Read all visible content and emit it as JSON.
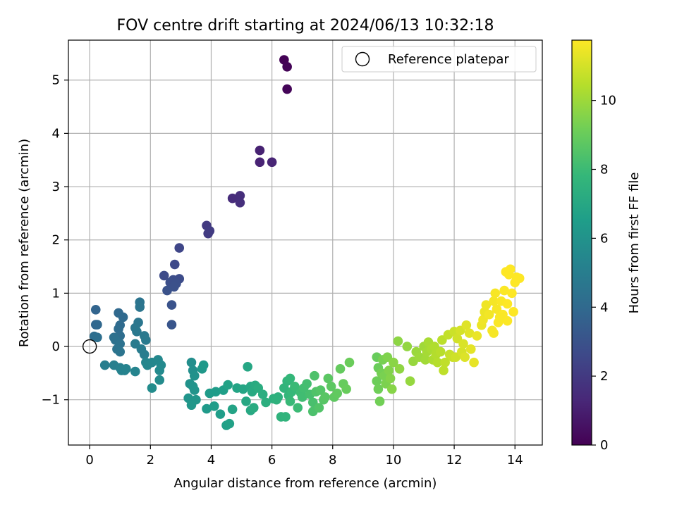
{
  "chart_data": {
    "type": "scatter",
    "title": "FOV centre drift starting at 2024/06/13 10:32:18",
    "xlabel": "Angular distance from reference (arcmin)",
    "ylabel": "Rotation from reference (arcmin)",
    "xlim": [
      -0.7,
      14.9
    ],
    "ylim": [
      -1.85,
      5.75
    ],
    "x_ticks": [
      0,
      2,
      4,
      6,
      8,
      10,
      12,
      14
    ],
    "y_ticks": [
      -1,
      0,
      1,
      2,
      3,
      4,
      5
    ],
    "grid": true,
    "legend": {
      "placement": "top-right",
      "entries": [
        "Reference platepar"
      ]
    },
    "reference_point": {
      "x": 0,
      "y": 0,
      "marker": "hollow-circle"
    },
    "colorbar": {
      "label": "Hours from first FF file",
      "range": [
        0,
        11.75
      ],
      "ticks": [
        0,
        2,
        4,
        6,
        8,
        10
      ],
      "colormap": "viridis"
    },
    "color_stops": [
      "#440154",
      "#482878",
      "#3e4989",
      "#31688e",
      "#26828e",
      "#1f9e89",
      "#35b779",
      "#6ece58",
      "#b5de2b",
      "#fde725"
    ],
    "points": [
      [
        6.4,
        5.38,
        0.05
      ],
      [
        6.5,
        5.25,
        0.1
      ],
      [
        6.5,
        4.83,
        0.15
      ],
      [
        5.6,
        3.68,
        1.1
      ],
      [
        5.6,
        3.46,
        1.15
      ],
      [
        6.0,
        3.46,
        1.2
      ],
      [
        4.7,
        2.78,
        1.5
      ],
      [
        4.95,
        2.83,
        1.55
      ],
      [
        4.95,
        2.7,
        1.6
      ],
      [
        3.85,
        2.27,
        2.0
      ],
      [
        3.9,
        2.12,
        2.05
      ],
      [
        3.95,
        2.17,
        2.1
      ],
      [
        2.95,
        1.85,
        2.5
      ],
      [
        2.8,
        1.54,
        2.6
      ],
      [
        2.45,
        1.33,
        2.7
      ],
      [
        2.95,
        1.27,
        2.75
      ],
      [
        2.75,
        1.25,
        2.8
      ],
      [
        2.65,
        1.2,
        2.85
      ],
      [
        2.85,
        1.18,
        2.9
      ],
      [
        2.78,
        1.12,
        2.95
      ],
      [
        2.55,
        1.05,
        3.0
      ],
      [
        2.7,
        0.78,
        3.05
      ],
      [
        2.7,
        0.41,
        3.1
      ],
      [
        0.2,
        0.69,
        3.8
      ],
      [
        0.2,
        0.41,
        3.85
      ],
      [
        0.25,
        0.41,
        3.9
      ],
      [
        0.95,
        0.63,
        3.95
      ],
      [
        1.1,
        0.55,
        4.0
      ],
      [
        1.0,
        0.4,
        4.05
      ],
      [
        0.95,
        0.33,
        4.1
      ],
      [
        1.0,
        0.2,
        4.15
      ],
      [
        0.15,
        0.19,
        4.2
      ],
      [
        0.25,
        0.17,
        4.25
      ],
      [
        0.8,
        0.17,
        4.3
      ],
      [
        0.85,
        0.12,
        4.35
      ],
      [
        1.0,
        0.05,
        4.4
      ],
      [
        0.9,
        -0.05,
        4.45
      ],
      [
        1.0,
        -0.1,
        4.5
      ],
      [
        1.65,
        0.83,
        4.5
      ],
      [
        1.65,
        0.74,
        4.55
      ],
      [
        1.6,
        0.45,
        4.6
      ],
      [
        1.5,
        0.35,
        4.65
      ],
      [
        1.55,
        0.28,
        4.7
      ],
      [
        1.8,
        0.2,
        4.75
      ],
      [
        1.85,
        0.12,
        4.8
      ],
      [
        1.5,
        0.05,
        4.85
      ],
      [
        1.7,
        -0.05,
        4.9
      ],
      [
        1.8,
        -0.15,
        4.95
      ],
      [
        0.5,
        -0.35,
        5.0
      ],
      [
        0.8,
        -0.35,
        5.05
      ],
      [
        1.0,
        -0.4,
        5.1
      ],
      [
        1.15,
        -0.45,
        5.15
      ],
      [
        1.05,
        -0.45,
        5.2
      ],
      [
        1.2,
        -0.42,
        5.25
      ],
      [
        1.5,
        -0.47,
        5.3
      ],
      [
        1.85,
        -0.3,
        5.35
      ],
      [
        1.9,
        -0.35,
        5.4
      ],
      [
        2.05,
        -0.3,
        5.45
      ],
      [
        2.25,
        -0.25,
        5.5
      ],
      [
        2.35,
        -0.35,
        5.55
      ],
      [
        2.3,
        -0.45,
        5.6
      ],
      [
        2.3,
        -0.63,
        5.65
      ],
      [
        2.05,
        -0.78,
        5.7
      ],
      [
        3.35,
        -0.3,
        5.8
      ],
      [
        3.4,
        -0.45,
        5.85
      ],
      [
        3.45,
        -0.55,
        5.9
      ],
      [
        3.3,
        -0.7,
        5.95
      ],
      [
        3.4,
        -0.75,
        6.0
      ],
      [
        3.45,
        -0.82,
        6.05
      ],
      [
        3.25,
        -0.97,
        6.1
      ],
      [
        3.5,
        -1.0,
        6.15
      ],
      [
        3.35,
        -1.1,
        6.2
      ],
      [
        3.7,
        -0.42,
        6.25
      ],
      [
        3.75,
        -0.35,
        6.3
      ],
      [
        3.85,
        -1.17,
        6.35
      ],
      [
        3.95,
        -0.88,
        6.4
      ],
      [
        4.15,
        -0.85,
        6.45
      ],
      [
        4.1,
        -1.12,
        6.5
      ],
      [
        4.3,
        -1.27,
        6.55
      ],
      [
        4.4,
        -0.82,
        6.6
      ],
      [
        4.5,
        -1.48,
        6.65
      ],
      [
        4.6,
        -1.45,
        6.7
      ],
      [
        4.55,
        -0.72,
        6.75
      ],
      [
        4.7,
        -1.18,
        6.8
      ],
      [
        4.85,
        -0.78,
        6.85
      ],
      [
        5.05,
        -0.8,
        6.9
      ],
      [
        5.2,
        -0.38,
        6.95
      ],
      [
        5.3,
        -0.75,
        7.0
      ],
      [
        5.15,
        -1.03,
        7.0
      ],
      [
        5.3,
        -1.2,
        7.05
      ],
      [
        5.35,
        -0.85,
        7.1
      ],
      [
        5.45,
        -0.73,
        7.15
      ],
      [
        5.4,
        -1.15,
        7.2
      ],
      [
        5.55,
        -0.78,
        7.25
      ],
      [
        5.7,
        -0.9,
        7.3
      ],
      [
        5.8,
        -1.05,
        7.35
      ],
      [
        6.05,
        -0.98,
        7.4
      ],
      [
        6.2,
        -0.95,
        7.45
      ],
      [
        6.15,
        -1.0,
        7.5
      ],
      [
        6.3,
        -1.32,
        7.55
      ],
      [
        6.45,
        -1.32,
        7.6
      ],
      [
        6.4,
        -0.78,
        7.65
      ],
      [
        6.5,
        -0.65,
        7.7
      ],
      [
        6.55,
        -0.92,
        7.75
      ],
      [
        6.6,
        -0.6,
        7.8
      ],
      [
        6.65,
        -0.85,
        7.85
      ],
      [
        6.6,
        -1.03,
        7.9
      ],
      [
        6.75,
        -0.75,
        7.95
      ],
      [
        6.85,
        -1.15,
        8.0
      ],
      [
        6.95,
        -0.87,
        8.05
      ],
      [
        7.0,
        -0.95,
        8.1
      ],
      [
        7.05,
        -0.78,
        8.15
      ],
      [
        7.15,
        -0.7,
        8.2
      ],
      [
        7.25,
        -0.9,
        8.25
      ],
      [
        7.35,
        -1.05,
        8.3
      ],
      [
        7.35,
        -1.22,
        8.35
      ],
      [
        7.4,
        -0.55,
        8.4
      ],
      [
        7.45,
        -0.85,
        8.45
      ],
      [
        7.55,
        -1.15,
        8.5
      ],
      [
        7.6,
        -0.82,
        8.55
      ],
      [
        7.7,
        -1.0,
        8.6
      ],
      [
        7.75,
        -0.95,
        8.65
      ],
      [
        7.85,
        -0.6,
        8.7
      ],
      [
        7.95,
        -0.75,
        8.75
      ],
      [
        8.05,
        -0.95,
        8.8
      ],
      [
        8.15,
        -0.88,
        8.85
      ],
      [
        8.25,
        -0.42,
        8.9
      ],
      [
        8.35,
        -0.7,
        8.95
      ],
      [
        8.45,
        -0.8,
        9.0
      ],
      [
        8.55,
        -0.3,
        9.05
      ],
      [
        9.45,
        -0.2,
        9.0
      ],
      [
        9.5,
        -0.4,
        9.05
      ],
      [
        9.45,
        -0.65,
        9.1
      ],
      [
        9.5,
        -0.8,
        9.15
      ],
      [
        9.55,
        -1.03,
        9.2
      ],
      [
        9.6,
        -0.5,
        9.25
      ],
      [
        9.65,
        -0.25,
        9.3
      ],
      [
        9.7,
        -0.55,
        9.35
      ],
      [
        9.75,
        -0.7,
        9.4
      ],
      [
        9.8,
        -0.2,
        9.45
      ],
      [
        9.85,
        -0.45,
        9.5
      ],
      [
        9.9,
        -0.6,
        9.55
      ],
      [
        9.95,
        -0.8,
        9.6
      ],
      [
        10.0,
        -0.3,
        9.65
      ],
      [
        10.15,
        0.1,
        9.7
      ],
      [
        10.2,
        -0.42,
        9.75
      ],
      [
        10.45,
        0.0,
        9.8
      ],
      [
        10.55,
        -0.65,
        9.85
      ],
      [
        10.65,
        -0.28,
        9.9
      ],
      [
        10.75,
        -0.1,
        9.95
      ],
      [
        10.85,
        -0.2,
        10.0
      ],
      [
        11.0,
        0.0,
        10.05
      ],
      [
        11.05,
        -0.25,
        10.1
      ],
      [
        11.1,
        -0.1,
        10.15
      ],
      [
        11.15,
        0.08,
        10.2
      ],
      [
        11.25,
        -0.05,
        10.25
      ],
      [
        11.3,
        -0.25,
        10.3
      ],
      [
        11.35,
        0.0,
        10.35
      ],
      [
        11.4,
        -0.15,
        10.4
      ],
      [
        11.45,
        -0.3,
        10.45
      ],
      [
        11.55,
        -0.1,
        10.5
      ],
      [
        11.6,
        0.12,
        10.55
      ],
      [
        11.65,
        -0.45,
        10.6
      ],
      [
        11.7,
        -0.3,
        10.65
      ],
      [
        11.8,
        0.22,
        10.7
      ],
      [
        11.85,
        -0.15,
        10.75
      ],
      [
        11.95,
        -0.2,
        10.8
      ],
      [
        12.0,
        0.28,
        10.85
      ],
      [
        12.05,
        -0.2,
        10.9
      ],
      [
        12.1,
        0.15,
        10.95
      ],
      [
        12.2,
        0.3,
        11.0
      ],
      [
        12.25,
        -0.1,
        11.05
      ],
      [
        12.3,
        0.05,
        11.1
      ],
      [
        12.35,
        -0.2,
        11.15
      ],
      [
        12.4,
        0.4,
        11.2
      ],
      [
        12.5,
        0.25,
        11.25
      ],
      [
        12.55,
        -0.05,
        11.3
      ],
      [
        12.65,
        -0.3,
        11.35
      ],
      [
        12.75,
        0.2,
        11.4
      ],
      [
        12.9,
        0.4,
        11.45
      ],
      [
        12.95,
        0.5,
        11.5
      ],
      [
        13.0,
        0.65,
        11.45
      ],
      [
        13.05,
        0.78,
        11.5
      ],
      [
        13.15,
        0.6,
        11.55
      ],
      [
        13.25,
        0.3,
        11.6
      ],
      [
        13.3,
        0.85,
        11.6
      ],
      [
        13.35,
        1.0,
        11.65
      ],
      [
        13.4,
        0.7,
        11.65
      ],
      [
        13.45,
        0.45,
        11.7
      ],
      [
        13.55,
        0.85,
        11.7
      ],
      [
        13.6,
        0.6,
        11.72
      ],
      [
        13.65,
        1.05,
        11.72
      ],
      [
        13.7,
        1.4,
        11.75
      ],
      [
        13.75,
        0.8,
        11.75
      ],
      [
        13.8,
        1.35,
        11.75
      ],
      [
        13.85,
        1.45,
        11.75
      ],
      [
        13.9,
        1.0,
        11.75
      ],
      [
        13.95,
        0.65,
        11.75
      ],
      [
        14.0,
        1.2,
        11.75
      ],
      [
        14.05,
        1.3,
        11.75
      ],
      [
        14.15,
        1.28,
        11.75
      ],
      [
        13.75,
        0.48,
        11.72
      ],
      [
        13.5,
        0.55,
        11.68
      ],
      [
        13.3,
        0.25,
        11.62
      ]
    ]
  }
}
